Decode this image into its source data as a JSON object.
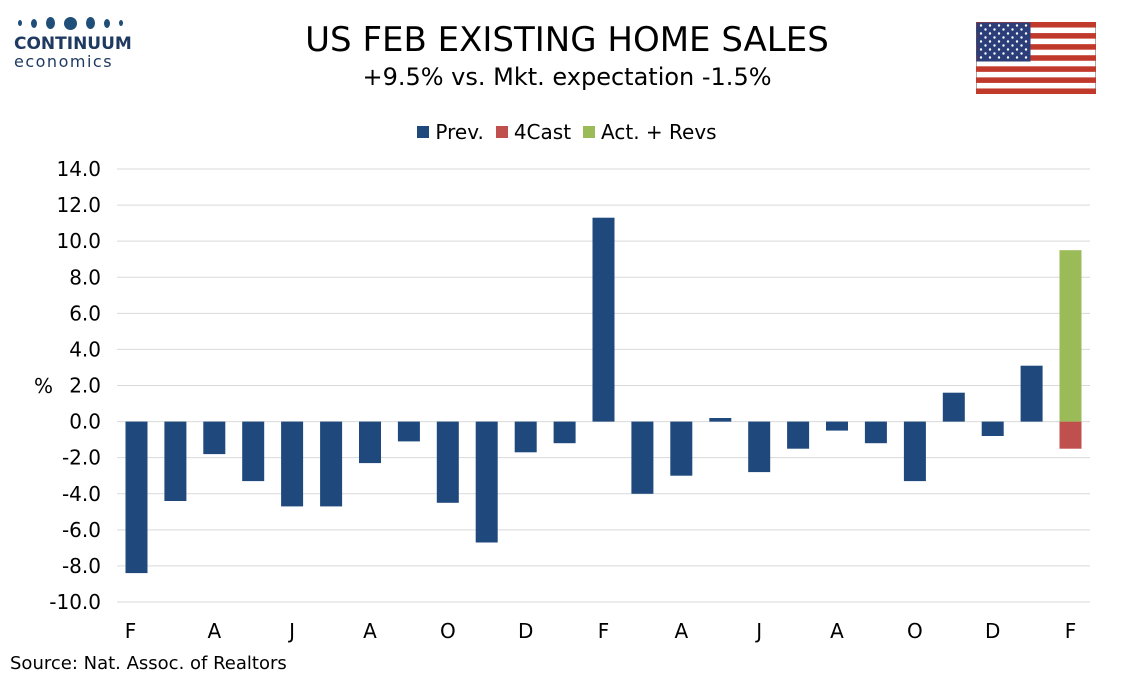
{
  "logo": {
    "line1": "CONTINUUM",
    "line2": "economics"
  },
  "title": "US FEB EXISTING HOME SALES",
  "subtitle": "+9.5% vs. Mkt. expectation -1.5%",
  "source": "Source: Nat. Assoc. of Realtors",
  "colors": {
    "prev": "#1f497d",
    "forecast": "#c0504d",
    "actual": "#9bbb59",
    "grid": "#d9d9d9"
  },
  "chart_data": {
    "type": "bar",
    "ylabel": "%",
    "ylim": [
      -10,
      14
    ],
    "yticks": [
      14,
      12,
      10,
      8,
      6,
      4,
      2,
      0,
      -2,
      -4,
      -6,
      -8,
      -10
    ],
    "ytick_labels": [
      "14.0",
      "12.0",
      "10.0",
      "8.0",
      "6.0",
      "4.0",
      "2.0",
      "0.0",
      "-2.0",
      "-4.0",
      "-6.0",
      "-8.0",
      "-10.0"
    ],
    "xtick_labels": [
      "F",
      "A",
      "J",
      "A",
      "O",
      "D",
      "F",
      "A",
      "J",
      "A",
      "O",
      "D",
      "F"
    ],
    "legend_position": "top",
    "grid": true,
    "series": [
      {
        "name": "Prev.",
        "color": "#1f497d",
        "values": [
          -8.4,
          -4.4,
          -1.8,
          -3.3,
          -4.7,
          -4.7,
          -2.3,
          -1.1,
          -4.5,
          -6.7,
          -1.7,
          -1.2,
          11.3,
          -4.0,
          -3.0,
          0.2,
          -2.8,
          -1.5,
          -0.5,
          -1.2,
          -3.3,
          1.6,
          -0.8,
          3.1,
          null
        ]
      },
      {
        "name": "4Cast",
        "color": "#c0504d",
        "values": [
          null,
          null,
          null,
          null,
          null,
          null,
          null,
          null,
          null,
          null,
          null,
          null,
          null,
          null,
          null,
          null,
          null,
          null,
          null,
          null,
          null,
          null,
          null,
          null,
          -1.5
        ]
      },
      {
        "name": "Act. + Revs",
        "color": "#9bbb59",
        "values": [
          null,
          null,
          null,
          null,
          null,
          null,
          null,
          null,
          null,
          null,
          null,
          null,
          null,
          null,
          null,
          null,
          null,
          null,
          null,
          null,
          null,
          null,
          null,
          null,
          9.5
        ]
      }
    ]
  }
}
